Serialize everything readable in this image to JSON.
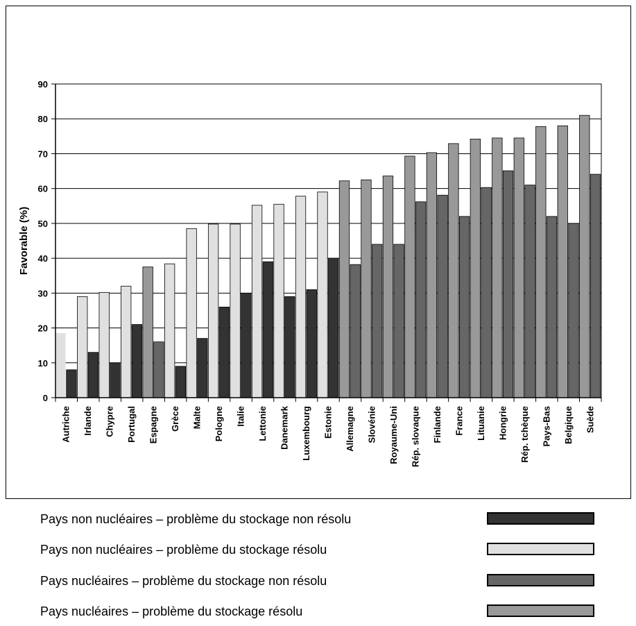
{
  "chart_data": {
    "type": "bar",
    "ylabel": "Favorable (%)",
    "ylim": [
      0,
      90
    ],
    "yticks": [
      0,
      10,
      20,
      30,
      40,
      50,
      60,
      70,
      80,
      90
    ],
    "grid": true,
    "categories": [
      "Autriche",
      "Irlande",
      "Chypre",
      "Portugal",
      "Espagne",
      "Grèce",
      "Malte",
      "Pologne",
      "Italie",
      "Lettonie",
      "Danemark",
      "Luxembourg",
      "Estonie",
      "Allemagne",
      "Slovénie",
      "Royaume-Uni",
      "Rép. slovaque",
      "Finlande",
      "France",
      "Lituanie",
      "Hongrie",
      "Rép. tchèque",
      "Pays-Bas",
      "Belgique",
      "Suède"
    ],
    "group": [
      "non-nuclear",
      "non-nuclear",
      "non-nuclear",
      "non-nuclear",
      "nuclear",
      "non-nuclear",
      "non-nuclear",
      "non-nuclear",
      "non-nuclear",
      "non-nuclear",
      "non-nuclear",
      "non-nuclear",
      "non-nuclear",
      "nuclear",
      "nuclear",
      "nuclear",
      "nuclear",
      "nuclear",
      "nuclear",
      "nuclear",
      "nuclear",
      "nuclear",
      "nuclear",
      "nuclear",
      "nuclear"
    ],
    "series": [
      {
        "name": "problème du stockage résolu",
        "values": [
          18.5,
          29,
          30.2,
          32,
          37.5,
          38.4,
          48.5,
          49.8,
          49.8,
          55.2,
          55.5,
          57.8,
          59,
          62.2,
          62.5,
          63.6,
          69.3,
          70.3,
          72.9,
          74.2,
          74.5,
          74.5,
          77.8,
          78,
          81
        ]
      },
      {
        "name": "problème du stockage non résolu",
        "values": [
          8,
          13,
          10,
          21,
          16,
          9,
          17,
          26,
          30,
          39,
          29,
          31,
          40,
          38.2,
          44,
          44,
          56.2,
          58.1,
          52,
          60.3,
          65.1,
          61,
          52,
          50,
          64.1
        ]
      }
    ],
    "colors": {
      "non_nuclear_unresolved": "#333333",
      "non_nuclear_resolved": "#e0e0e0",
      "nuclear_unresolved": "#666666",
      "nuclear_resolved": "#999999"
    }
  },
  "legend": [
    {
      "label": "Pays non nucléaires – problème du stockage non résolu",
      "color": "#333333"
    },
    {
      "label": "Pays non nucléaires – problème du stockage résolu",
      "color": "#e0e0e0"
    },
    {
      "label": "Pays nucléaires – problème du stockage non résolu",
      "color": "#666666"
    },
    {
      "label": "Pays nucléaires – problème du stockage résolu",
      "color": "#999999"
    }
  ]
}
